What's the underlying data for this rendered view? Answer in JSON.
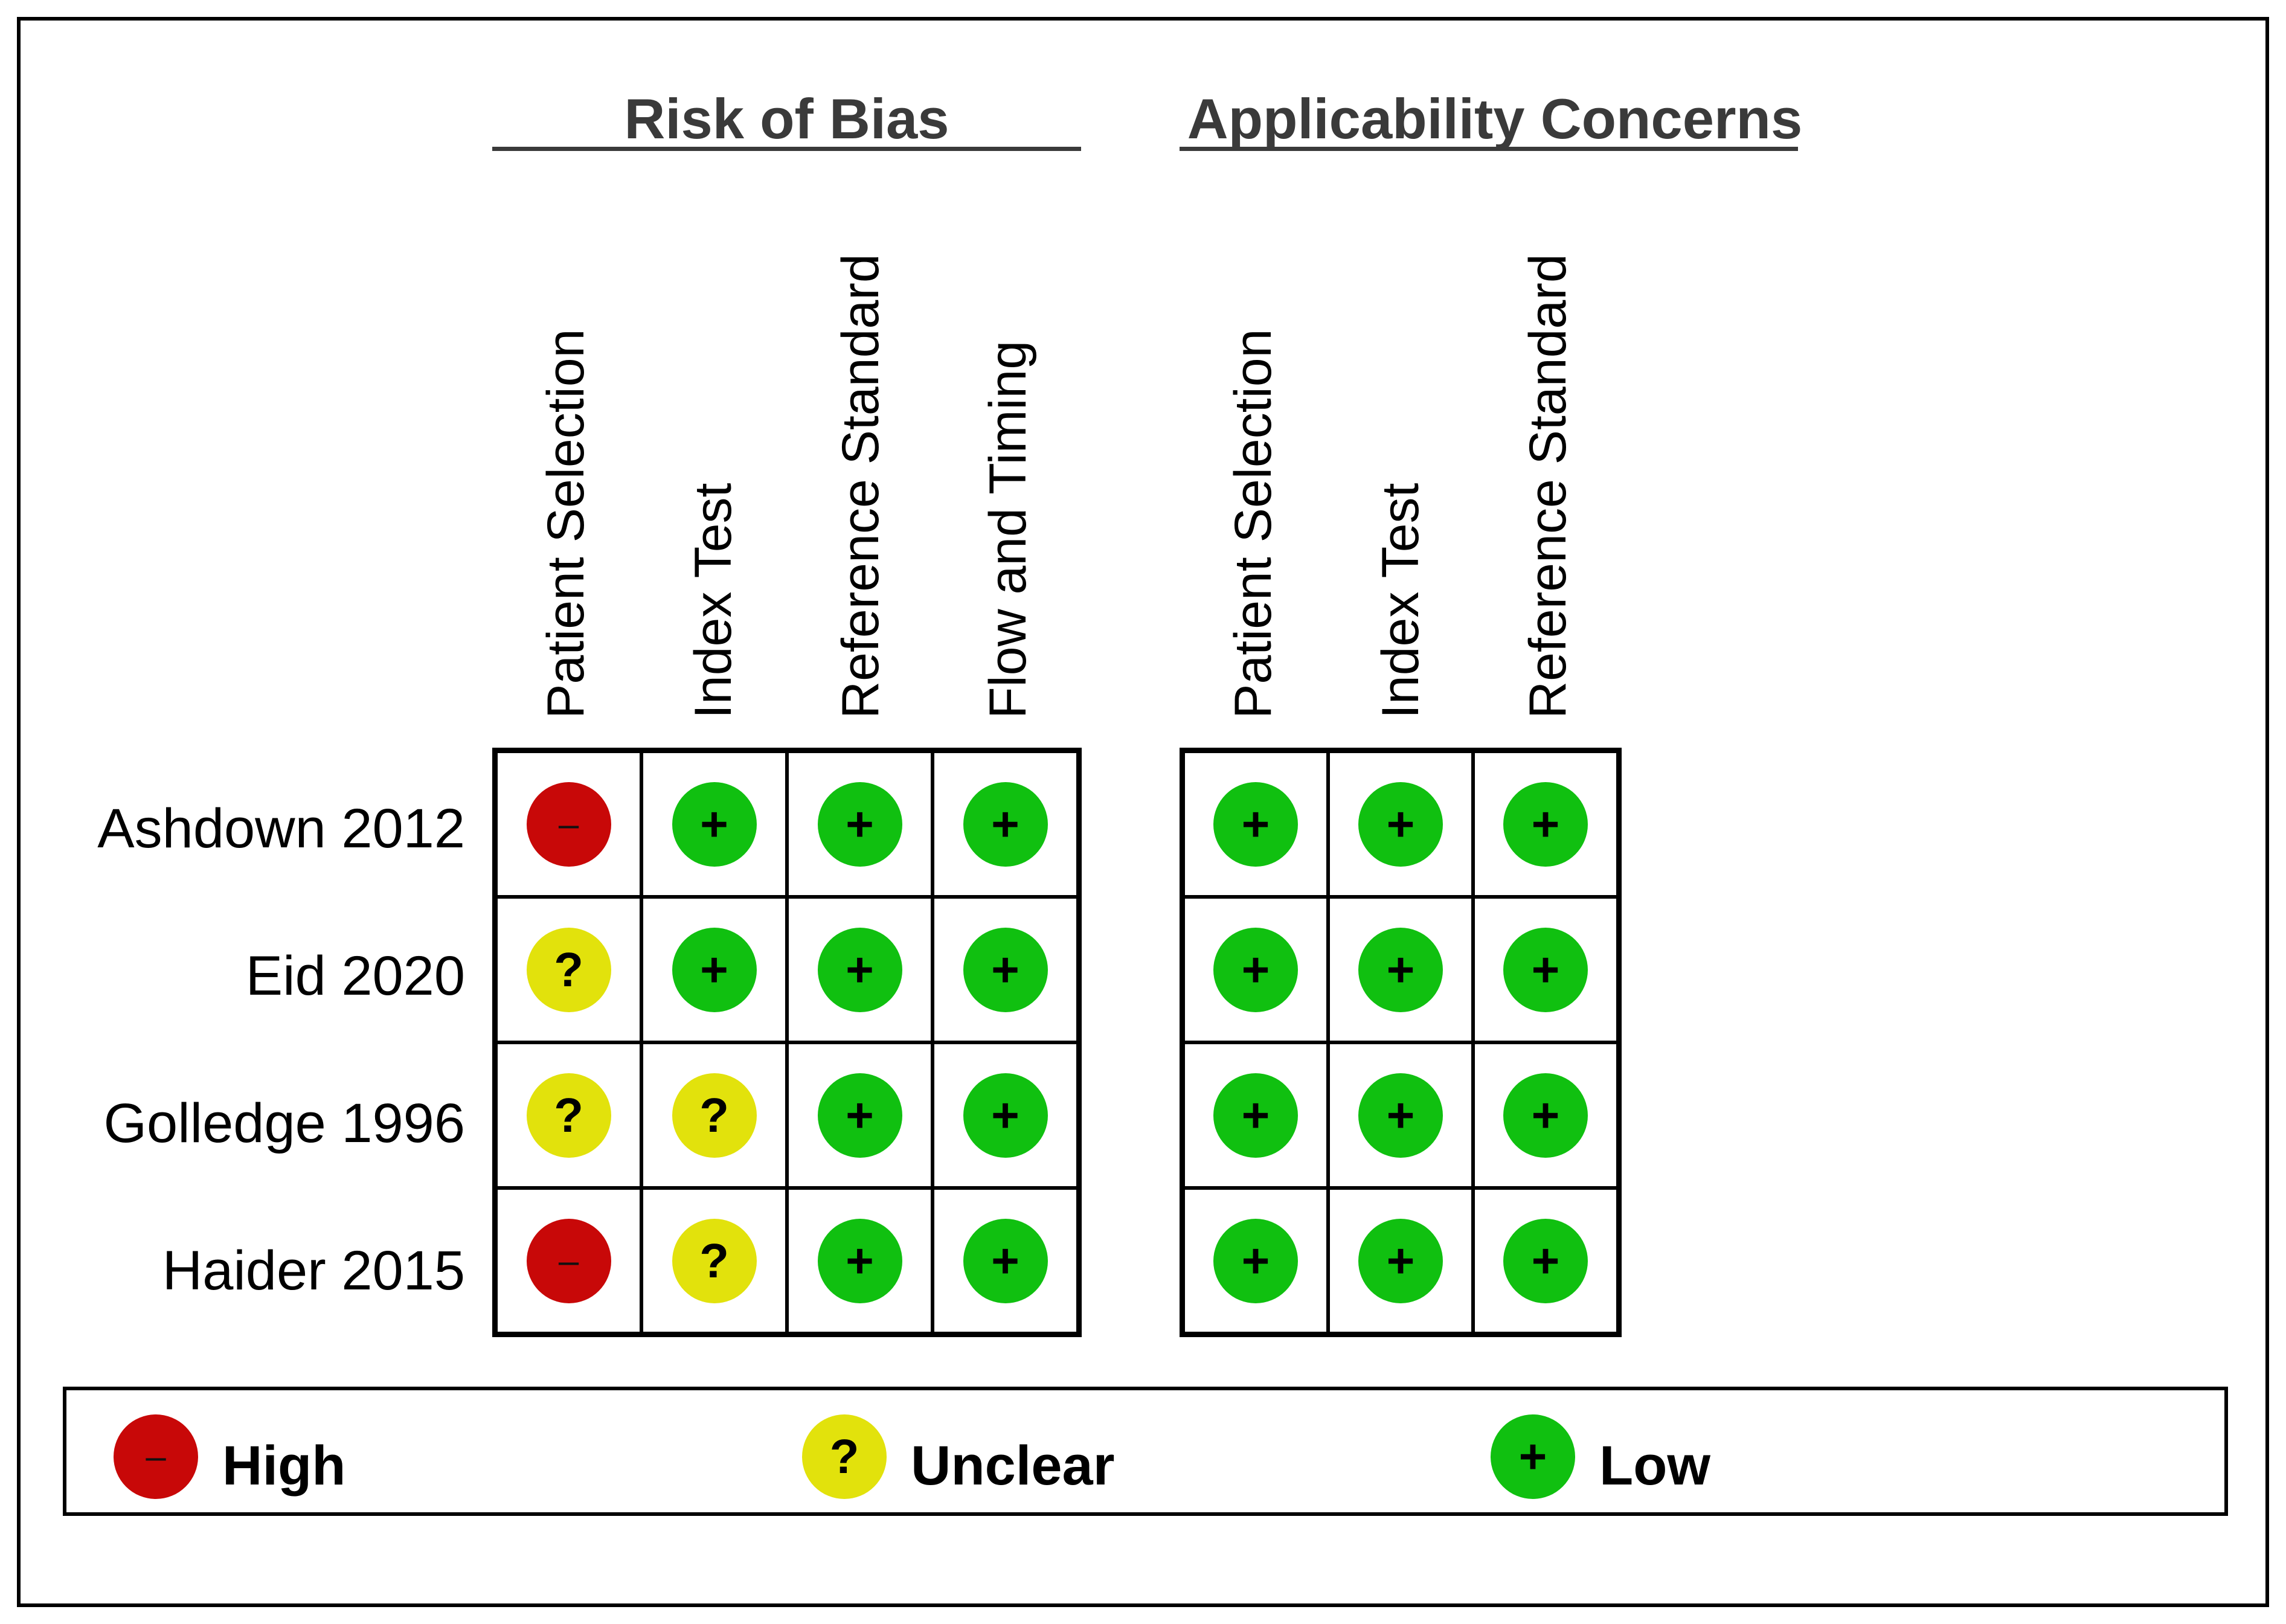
{
  "groups": {
    "bias": {
      "title": "Risk of Bias",
      "columns": [
        "Patient Selection",
        "Index Test",
        "Reference Standard",
        "Flow and Timing"
      ]
    },
    "applicability": {
      "title": "Applicability Concerns",
      "columns": [
        "Patient Selection",
        "Index Test",
        "Reference Standard"
      ]
    }
  },
  "studies": [
    {
      "name": "Ashdown 2012",
      "bias": [
        "high",
        "low",
        "low",
        "low"
      ],
      "applicability": [
        "low",
        "low",
        "low"
      ]
    },
    {
      "name": "Eid 2020",
      "bias": [
        "unclear",
        "low",
        "low",
        "low"
      ],
      "applicability": [
        "low",
        "low",
        "low"
      ]
    },
    {
      "name": "Golledge 1996",
      "bias": [
        "unclear",
        "unclear",
        "low",
        "low"
      ],
      "applicability": [
        "low",
        "low",
        "low"
      ]
    },
    {
      "name": "Haider 2015",
      "bias": [
        "high",
        "unclear",
        "low",
        "low"
      ],
      "applicability": [
        "low",
        "low",
        "low"
      ]
    }
  ],
  "symbols": {
    "high": "–",
    "unclear": "?",
    "low": "+"
  },
  "legend": [
    {
      "key": "high",
      "label": "High"
    },
    {
      "key": "unclear",
      "label": "Unclear"
    },
    {
      "key": "low",
      "label": "Low"
    }
  ],
  "colors": {
    "high": "#c80808",
    "unclear": "#e2e20c",
    "low": "#10c010"
  }
}
